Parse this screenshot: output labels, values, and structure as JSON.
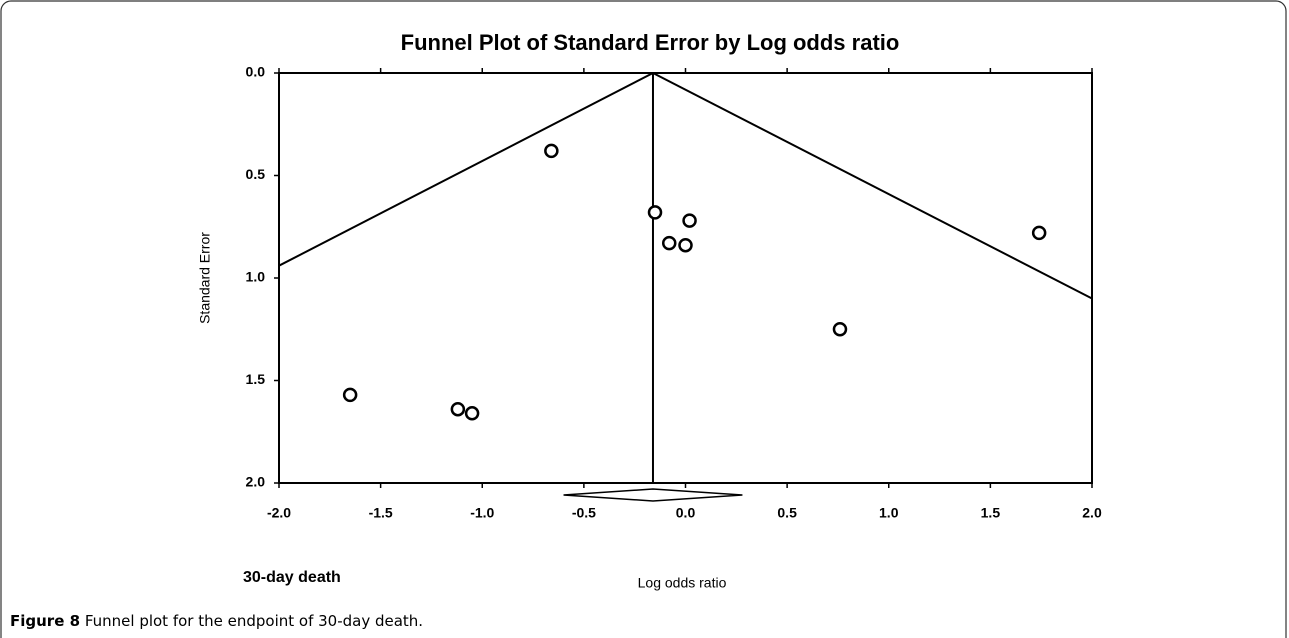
{
  "chart_data": {
    "type": "scatter",
    "title": "Funnel Plot of Standard Error by Log odds ratio",
    "x_label": "Log odds ratio",
    "y_label": "Standard Error",
    "subplot_label": "30-day death",
    "x": [
      -0.66,
      -0.15,
      0.02,
      -0.08,
      0.0,
      1.74,
      0.76,
      -1.65,
      -1.12,
      -1.05
    ],
    "y": [
      0.38,
      0.68,
      0.72,
      0.83,
      0.84,
      0.78,
      1.25,
      1.57,
      1.64,
      1.66
    ],
    "y_inverted": true,
    "xlim": [
      -2.0,
      2.0
    ],
    "ylim": [
      0,
      2
    ],
    "xticks": [
      {
        "value": -2,
        "label": "-2.0"
      },
      {
        "value": -1.5,
        "label": "-1.5"
      },
      {
        "value": -1,
        "label": "-1.0"
      },
      {
        "value": -0.5,
        "label": "-0.5"
      },
      {
        "value": 0,
        "label": "0.0"
      },
      {
        "value": 0.5,
        "label": "0.5"
      },
      {
        "value": 1,
        "label": "1.0"
      },
      {
        "value": 1.5,
        "label": "1.5"
      },
      {
        "value": 2,
        "label": "2.0"
      }
    ],
    "yticks": [
      {
        "value": 0,
        "label": "0.0"
      },
      {
        "value": 0.5,
        "label": "0.5"
      },
      {
        "value": 1,
        "label": "1.0"
      },
      {
        "value": 1.5,
        "label": "1.5"
      },
      {
        "value": 2,
        "label": "2.0"
      }
    ],
    "funnel": [
      {
        "x": [
          -0.16,
          -2.0
        ],
        "y": [
          0,
          0.94
        ]
      },
      {
        "x": [
          -0.16,
          2.0
        ],
        "y": [
          0,
          1.1
        ]
      }
    ],
    "summary": {
      "estimate": -0.16,
      "lower": -0.6,
      "upper": 0.28
    }
  },
  "caption": {
    "label": "Figure 8",
    "text": "Funnel plot for the endpoint of 30-day death."
  }
}
